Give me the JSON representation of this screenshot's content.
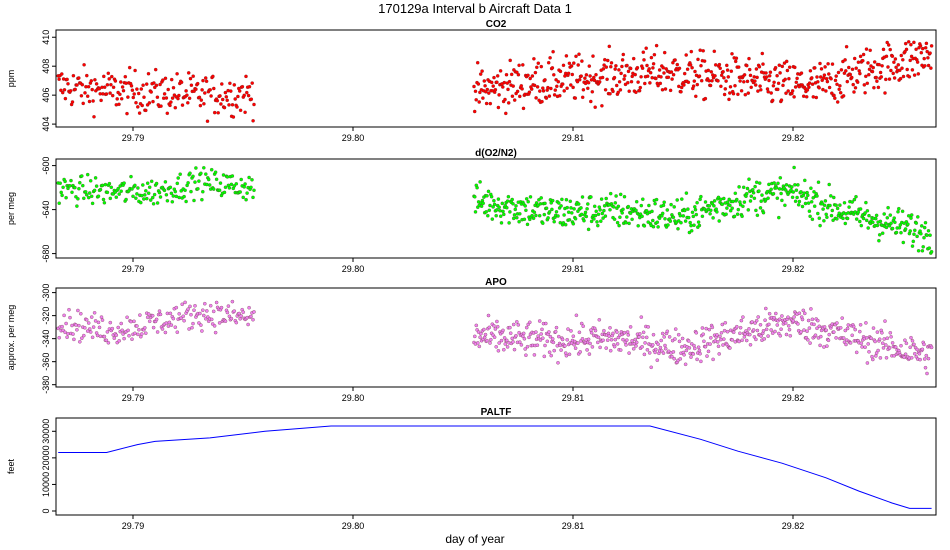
{
  "title": "170129a   Interval b Aircraft Data 1",
  "xlabel": "day of year",
  "chart_data": [
    {
      "type": "scatter",
      "title": "CO2",
      "ylabel": "ppm",
      "xlim": [
        29.7865,
        29.8265
      ],
      "ylim": [
        403.8,
        410.5
      ],
      "yticks": [
        404,
        406,
        408,
        410
      ],
      "xticks": [
        29.79,
        29.8,
        29.81,
        29.82
      ],
      "xtick_labels": [
        "29.79",
        "29.80",
        "29.81",
        "29.82"
      ],
      "color": "#ff0000",
      "series": [
        {
          "segments": [
            {
              "x0": 29.7866,
              "x1": 29.7955,
              "n": 220,
              "mean": [
                [
                  29.7866,
                  406.6
                ],
                [
                  29.789,
                  406.3
                ],
                [
                  29.791,
                  406.2
                ],
                [
                  29.793,
                  406.0
                ],
                [
                  29.7955,
                  406.1
                ]
              ],
              "spread": 1.6
            },
            {
              "x0": 29.8055,
              "x1": 29.8263,
              "n": 620,
              "mean": [
                [
                  29.8055,
                  406.2
                ],
                [
                  29.808,
                  406.9
                ],
                [
                  29.811,
                  407.2
                ],
                [
                  29.814,
                  407.6
                ],
                [
                  29.817,
                  407.2
                ],
                [
                  29.819,
                  406.8
                ],
                [
                  29.821,
                  406.6
                ],
                [
                  29.823,
                  407.6
                ],
                [
                  29.8263,
                  408.8
                ]
              ],
              "spread": 1.8
            }
          ]
        }
      ]
    },
    {
      "type": "scatter",
      "title": "d(O2/N2)",
      "ylabel": "per meg",
      "xlim": [
        29.7865,
        29.8265
      ],
      "ylim": [
        -684,
        -594
      ],
      "yticks": [
        -600,
        -640,
        -680
      ],
      "xticks": [
        29.79,
        29.8,
        29.81,
        29.82
      ],
      "xtick_labels": [
        "29.79",
        "29.80",
        "29.81",
        "29.82"
      ],
      "color": "#00ff00",
      "series": [
        {
          "segments": [
            {
              "x0": 29.7866,
              "x1": 29.7955,
              "n": 200,
              "mean": [
                [
                  29.7866,
                  -621
                ],
                [
                  29.789,
                  -624
                ],
                [
                  29.791,
                  -624
                ],
                [
                  29.793,
                  -615
                ],
                [
                  29.7955,
                  -620
                ]
              ],
              "spread": 14
            },
            {
              "x0": 29.8055,
              "x1": 29.8263,
              "n": 600,
              "mean": [
                [
                  29.8055,
                  -632
                ],
                [
                  29.809,
                  -643
                ],
                [
                  29.812,
                  -641
                ],
                [
                  29.815,
                  -647
                ],
                [
                  29.818,
                  -628
                ],
                [
                  29.82,
                  -625
                ],
                [
                  29.8225,
                  -643
                ],
                [
                  29.8263,
                  -663
                ]
              ],
              "spread": 18
            }
          ]
        }
      ]
    },
    {
      "type": "scatter",
      "title": "APO",
      "ylabel": "approx. per meg",
      "xlim": [
        29.7865,
        29.8265
      ],
      "ylim": [
        -382,
        -296
      ],
      "yticks": [
        -300,
        -320,
        -340,
        -360,
        -380
      ],
      "xticks": [
        29.79,
        29.8,
        29.81,
        29.82
      ],
      "xtick_labels": [
        "29.79",
        "29.80",
        "29.81",
        "29.82"
      ],
      "color": "#ee82ee",
      "series": [
        {
          "segments": [
            {
              "x0": 29.7866,
              "x1": 29.7955,
              "n": 200,
              "mean": [
                [
                  29.7866,
                  -326
                ],
                [
                  29.789,
                  -333
                ],
                [
                  29.791,
                  -326
                ],
                [
                  29.793,
                  -318
                ],
                [
                  29.7955,
                  -322
                ]
              ],
              "spread": 14
            },
            {
              "x0": 29.8055,
              "x1": 29.8263,
              "n": 600,
              "mean": [
                [
                  29.8055,
                  -338
                ],
                [
                  29.809,
                  -342
                ],
                [
                  29.812,
                  -340
                ],
                [
                  29.815,
                  -348
                ],
                [
                  29.818,
                  -334
                ],
                [
                  29.82,
                  -325
                ],
                [
                  29.8225,
                  -338
                ],
                [
                  29.8263,
                  -355
                ]
              ],
              "spread": 17
            }
          ]
        }
      ]
    },
    {
      "type": "line",
      "title": "PALTF",
      "ylabel": "feet",
      "xlim": [
        29.7865,
        29.8265
      ],
      "ylim": [
        -1500,
        35000
      ],
      "yticks": [
        0,
        10000,
        20000,
        30000
      ],
      "xticks": [
        29.79,
        29.8,
        29.81,
        29.82
      ],
      "xtick_labels": [
        "29.79",
        "29.80",
        "29.81",
        "29.82"
      ],
      "color": "#0000ff",
      "series": [
        {
          "x": [
            29.7866,
            29.7888,
            29.7902,
            29.791,
            29.7935,
            29.796,
            29.799,
            29.803,
            29.8085,
            29.8135,
            29.8158,
            29.8175,
            29.8195,
            29.8215,
            29.823,
            29.8245,
            29.8253,
            29.8263
          ],
          "y": [
            22000,
            22000,
            25000,
            26200,
            27500,
            30000,
            32000,
            32000,
            32000,
            32000,
            27000,
            22500,
            18000,
            12500,
            7500,
            3000,
            1000,
            1000
          ]
        }
      ]
    }
  ]
}
